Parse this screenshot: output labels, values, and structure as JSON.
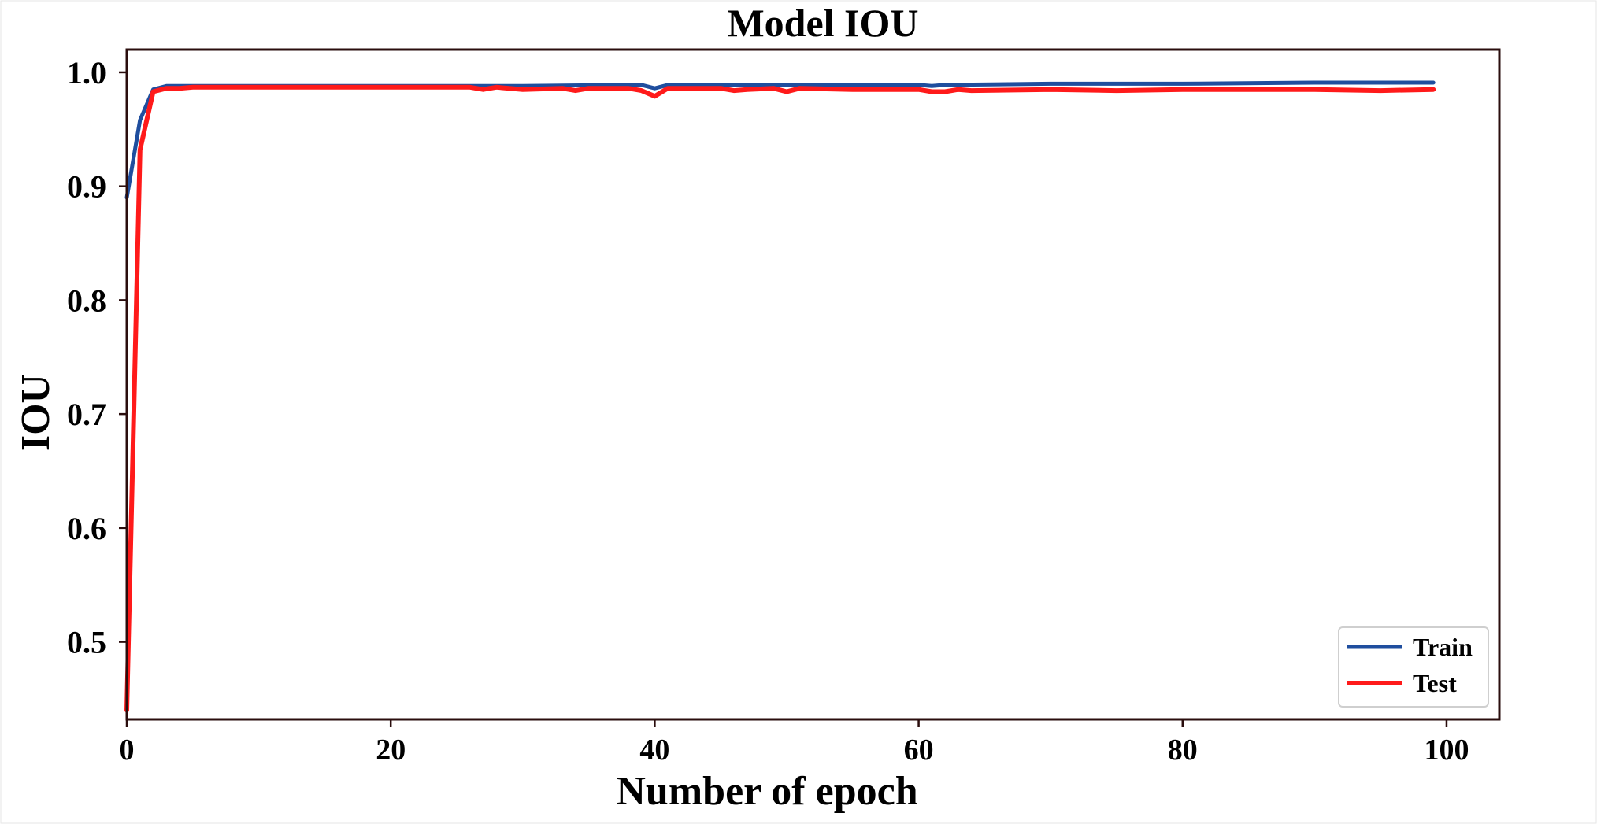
{
  "chart_data": {
    "type": "line",
    "title": "Model IOU",
    "xlabel": "Number of epoch",
    "ylabel": "IOU",
    "xlim": [
      0,
      104
    ],
    "ylim": [
      0.432,
      1.02
    ],
    "x_ticks": [
      0,
      20,
      40,
      60,
      80,
      100
    ],
    "x_tick_labels": [
      "0",
      "20",
      "40",
      "60",
      "80",
      "100"
    ],
    "y_ticks": [
      0.5,
      0.6,
      0.7,
      0.8,
      0.9,
      1.0
    ],
    "y_tick_labels": [
      "0.5",
      "0.6",
      "0.7",
      "0.8",
      "0.9",
      "1.0"
    ],
    "grid": false,
    "legend_position": "bottom-right",
    "series": [
      {
        "name": "Train",
        "color": "#1f4e9e",
        "x": [
          0,
          1,
          2,
          3,
          5,
          10,
          20,
          30,
          38,
          39,
          40,
          41,
          45,
          50,
          60,
          61,
          62,
          70,
          80,
          90,
          99
        ],
        "y": [
          0.89,
          0.958,
          0.985,
          0.988,
          0.988,
          0.988,
          0.988,
          0.988,
          0.989,
          0.989,
          0.986,
          0.989,
          0.989,
          0.989,
          0.989,
          0.988,
          0.989,
          0.99,
          0.99,
          0.991,
          0.991
        ]
      },
      {
        "name": "Test",
        "color": "#ff1a1a",
        "x": [
          0,
          1,
          2,
          3,
          4,
          5,
          10,
          20,
          26,
          27,
          28,
          30,
          33,
          34,
          35,
          38,
          39,
          40,
          41,
          45,
          46,
          47,
          49,
          50,
          51,
          55,
          60,
          61,
          62,
          63,
          64,
          70,
          75,
          80,
          90,
          95,
          99
        ],
        "y": [
          0.44,
          0.932,
          0.983,
          0.986,
          0.986,
          0.987,
          0.987,
          0.987,
          0.987,
          0.985,
          0.987,
          0.985,
          0.986,
          0.984,
          0.986,
          0.986,
          0.984,
          0.979,
          0.986,
          0.986,
          0.984,
          0.985,
          0.986,
          0.983,
          0.986,
          0.985,
          0.985,
          0.983,
          0.983,
          0.985,
          0.984,
          0.985,
          0.984,
          0.985,
          0.985,
          0.984,
          0.985
        ]
      }
    ]
  }
}
